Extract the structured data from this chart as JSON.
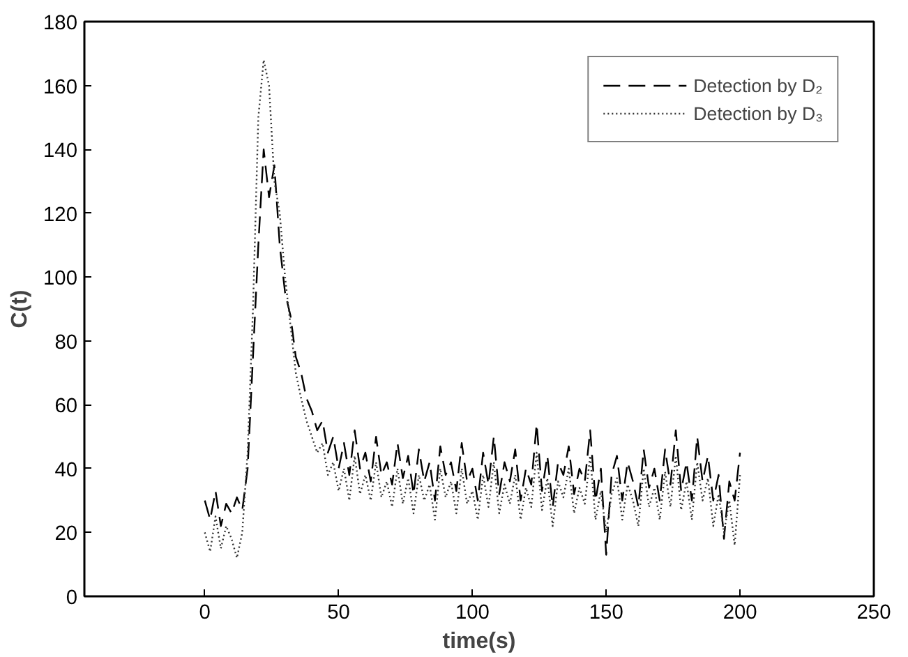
{
  "chart_data": {
    "type": "line",
    "xlabel": "time(s)",
    "ylabel": "C(t)",
    "x": [
      0,
      2,
      4,
      6,
      8,
      10,
      12,
      14,
      16,
      18,
      20,
      22,
      24,
      26,
      28,
      30,
      32,
      34,
      36,
      38,
      40,
      42,
      44,
      46,
      48,
      50,
      52,
      54,
      56,
      58,
      60,
      62,
      64,
      66,
      68,
      70,
      72,
      74,
      76,
      78,
      80,
      82,
      84,
      86,
      88,
      90,
      92,
      94,
      96,
      98,
      100,
      102,
      104,
      106,
      108,
      110,
      112,
      114,
      116,
      118,
      120,
      122,
      124,
      126,
      128,
      130,
      132,
      134,
      136,
      138,
      140,
      142,
      144,
      146,
      148,
      150,
      152,
      154,
      156,
      158,
      160,
      162,
      164,
      166,
      168,
      170,
      172,
      174,
      176,
      178,
      180,
      182,
      184,
      186,
      188,
      190,
      192,
      194,
      196,
      198,
      200
    ],
    "series": [
      {
        "name": "Detection by D₂",
        "color": "#000000",
        "line_style": "dashed",
        "values": [
          30,
          24,
          33,
          22,
          29,
          26,
          31,
          27,
          40,
          75,
          110,
          140,
          125,
          135,
          110,
          95,
          88,
          75,
          70,
          62,
          58,
          52,
          55,
          45,
          50,
          40,
          48,
          38,
          52,
          40,
          45,
          36,
          50,
          38,
          42,
          35,
          48,
          37,
          44,
          32,
          46,
          36,
          42,
          30,
          47,
          38,
          42,
          33,
          48,
          36,
          40,
          30,
          45,
          35,
          50,
          32,
          42,
          36,
          46,
          30,
          40,
          35,
          54,
          33,
          44,
          28,
          42,
          38,
          47,
          32,
          40,
          36,
          52,
          30,
          40,
          13,
          38,
          44,
          30,
          42,
          36,
          28,
          46,
          34,
          40,
          30,
          46,
          35,
          52,
          33,
          42,
          30,
          50,
          36,
          44,
          30,
          38,
          18,
          36,
          30,
          45
        ]
      },
      {
        "name": "Detection by D₃",
        "color": "#333333",
        "line_style": "dotted",
        "values": [
          20,
          14,
          25,
          15,
          22,
          18,
          12,
          20,
          45,
          90,
          150,
          168,
          160,
          130,
          120,
          100,
          85,
          70,
          62,
          55,
          50,
          45,
          48,
          38,
          42,
          33,
          40,
          30,
          44,
          32,
          38,
          30,
          42,
          31,
          36,
          28,
          40,
          29,
          37,
          26,
          38,
          30,
          35,
          24,
          40,
          31,
          36,
          26,
          40,
          29,
          33,
          24,
          38,
          28,
          42,
          26,
          35,
          29,
          38,
          24,
          34,
          28,
          45,
          27,
          37,
          22,
          36,
          31,
          40,
          26,
          34,
          29,
          44,
          24,
          33,
          20,
          32,
          37,
          24,
          35,
          30,
          22,
          40,
          28,
          34,
          24,
          39,
          28,
          44,
          27,
          36,
          24,
          42,
          30,
          37,
          22,
          32,
          20,
          30,
          16,
          38
        ]
      }
    ],
    "xlim": [
      -45,
      250
    ],
    "ylim": [
      0,
      180
    ],
    "xticks": [
      0,
      50,
      100,
      150,
      200,
      250
    ],
    "yticks": [
      0,
      20,
      40,
      60,
      80,
      100,
      120,
      140,
      160,
      180
    ],
    "legend": "top right"
  }
}
